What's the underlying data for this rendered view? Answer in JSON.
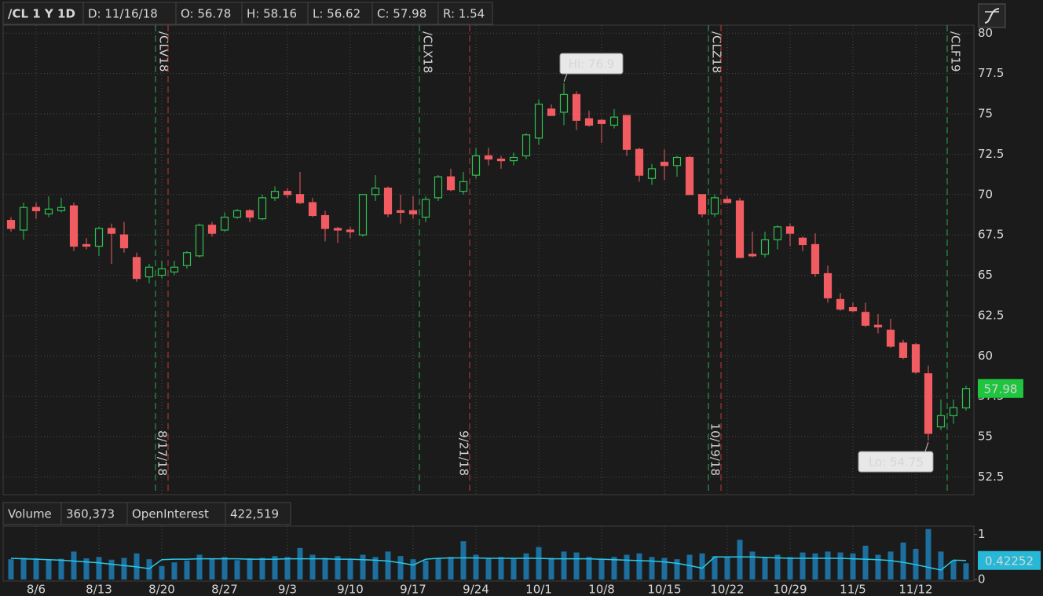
{
  "chart_data": [
    {
      "type": "candlestick",
      "header": [
        "/CL 1 Y 1D",
        "D: 11/16/18",
        "O: 56.78",
        "H: 58.16",
        "L: 56.62",
        "C: 57.98",
        "R: 1.54"
      ],
      "categories": [
        null,
        null,
        "8/6",
        null,
        null,
        null,
        null,
        "8/13",
        null,
        null,
        null,
        null,
        "8/20",
        null,
        null,
        null,
        null,
        "8/27",
        null,
        null,
        null,
        null,
        "9/3",
        null,
        null,
        null,
        null,
        "9/10",
        null,
        null,
        null,
        null,
        "9/17",
        null,
        null,
        null,
        null,
        "9/24",
        null,
        null,
        null,
        null,
        "10/1",
        null,
        null,
        null,
        null,
        "10/8",
        null,
        null,
        null,
        null,
        "10/15",
        null,
        null,
        null,
        null,
        "10/22",
        null,
        null,
        null,
        null,
        "10/29",
        null,
        null,
        null,
        null,
        "11/5",
        null,
        null,
        null,
        null,
        "11/12",
        null,
        null,
        null,
        null
      ],
      "open": [
        68.4,
        67.8,
        69.2,
        68.8,
        69.0,
        69.3,
        66.9,
        66.8,
        67.9,
        67.5,
        66.1,
        64.9,
        65.0,
        65.2,
        65.6,
        66.2,
        68.1,
        67.8,
        68.6,
        69.0,
        68.5,
        69.8,
        70.2,
        70.0,
        69.5,
        68.7,
        67.9,
        67.8,
        67.5,
        70.0,
        70.4,
        69.0,
        69.0,
        68.6,
        69.8,
        71.1,
        70.2,
        71.2,
        72.4,
        72.2,
        72.1,
        72.4,
        73.5,
        75.3,
        75.1,
        76.2,
        74.7,
        74.6,
        74.3,
        74.9,
        72.8,
        71.0,
        72.0,
        71.8,
        72.3,
        70.0,
        68.8,
        69.7,
        69.6,
        66.3,
        66.3,
        67.2,
        68.0,
        67.3,
        66.9,
        65.1,
        63.5,
        63.0,
        62.7,
        61.9,
        61.6,
        60.8,
        60.7,
        58.9,
        55.6,
        56.3,
        56.78
      ],
      "high": [
        68.6,
        69.5,
        69.5,
        69.9,
        69.8,
        69.5,
        67.3,
        68.0,
        68.2,
        68.3,
        66.4,
        65.7,
        65.9,
        65.9,
        66.5,
        68.2,
        68.3,
        68.9,
        69.1,
        69.1,
        70.0,
        70.5,
        70.4,
        71.4,
        69.8,
        69.0,
        68.0,
        68.0,
        70.0,
        71.2,
        70.5,
        70.0,
        69.9,
        69.9,
        71.2,
        71.6,
        71.4,
        72.9,
        72.9,
        72.4,
        72.6,
        73.8,
        75.9,
        75.6,
        76.9,
        76.4,
        75.2,
        74.7,
        75.3,
        74.9,
        72.9,
        71.9,
        72.8,
        72.4,
        72.4,
        70.0,
        70.0,
        69.9,
        69.8,
        67.7,
        67.7,
        68.1,
        68.2,
        67.4,
        67.6,
        65.6,
        63.9,
        63.3,
        63.3,
        62.6,
        62.3,
        61.0,
        60.8,
        59.4,
        57.3,
        57.3,
        58.16
      ],
      "low": [
        67.7,
        67.2,
        68.5,
        68.6,
        68.9,
        66.5,
        66.6,
        66.2,
        65.7,
        66.4,
        64.6,
        64.5,
        64.8,
        65.0,
        65.4,
        66.1,
        67.4,
        67.7,
        68.5,
        68.3,
        68.4,
        69.6,
        69.8,
        69.4,
        68.6,
        67.1,
        67.0,
        67.3,
        67.4,
        69.6,
        68.6,
        68.2,
        68.5,
        68.3,
        69.6,
        70.2,
        70.0,
        71.0,
        71.8,
        71.6,
        71.8,
        72.2,
        73.1,
        74.9,
        74.3,
        74.0,
        74.2,
        73.2,
        74.1,
        72.4,
        70.8,
        70.6,
        70.9,
        71.1,
        70.0,
        68.6,
        68.6,
        69.5,
        66.1,
        66.1,
        66.1,
        66.6,
        66.8,
        66.5,
        64.9,
        63.3,
        62.8,
        62.7,
        61.8,
        61.4,
        60.5,
        59.8,
        58.9,
        54.75,
        55.4,
        55.8,
        56.62
      ],
      "close": [
        67.9,
        69.2,
        69.0,
        69.1,
        69.2,
        66.8,
        66.8,
        67.9,
        67.6,
        66.7,
        64.8,
        65.5,
        65.4,
        65.5,
        66.4,
        68.1,
        67.6,
        68.6,
        69.0,
        68.6,
        69.8,
        70.2,
        70.0,
        69.5,
        68.7,
        67.9,
        67.8,
        67.7,
        70.0,
        70.4,
        68.8,
        68.9,
        68.8,
        69.7,
        71.1,
        70.3,
        70.8,
        72.4,
        72.2,
        72.1,
        72.3,
        73.7,
        75.6,
        74.9,
        76.2,
        74.6,
        74.3,
        74.4,
        74.8,
        72.8,
        71.2,
        71.6,
        71.8,
        72.3,
        70.0,
        68.8,
        69.8,
        69.5,
        66.1,
        66.2,
        67.2,
        68.0,
        67.6,
        66.9,
        65.1,
        63.6,
        62.9,
        62.8,
        61.9,
        61.8,
        60.6,
        59.9,
        59.0,
        55.2,
        56.3,
        56.8,
        57.98
      ],
      "up_color": "#2fc24f",
      "down_color": "#f05c61",
      "ylim": [
        51.4,
        80.5
      ],
      "yticks": [
        52.5,
        55,
        57.5,
        60,
        62.5,
        65,
        67.5,
        70,
        72.5,
        75,
        77.5,
        80
      ],
      "grid": true,
      "high_label": "Hi: 76.9",
      "low_label": "Lo: 54.75",
      "expirations": [
        {
          "symbol": "/CLV18",
          "date": "8/17/18"
        },
        {
          "symbol": "/CLX18",
          "date": "9/21/18"
        },
        {
          "symbol": "/CLZ18",
          "date": "10/19/18"
        },
        {
          "symbol": "/CLF19"
        }
      ]
    },
    {
      "type": "bar",
      "readouts": [
        "360,373",
        "422,519"
      ],
      "series": [
        {
          "name": "Volume",
          "color": "#1c6f9e",
          "values": [
            0.45,
            0.48,
            0.47,
            0.44,
            0.46,
            0.62,
            0.47,
            0.5,
            0.44,
            0.48,
            0.58,
            0.45,
            0.3,
            0.38,
            0.42,
            0.55,
            0.46,
            0.5,
            0.43,
            0.47,
            0.48,
            0.52,
            0.5,
            0.7,
            0.55,
            0.48,
            0.52,
            0.45,
            0.55,
            0.5,
            0.62,
            0.52,
            0.45,
            0.42,
            0.48,
            0.5,
            0.85,
            0.55,
            0.48,
            0.5,
            0.46,
            0.58,
            0.72,
            0.48,
            0.62,
            0.6,
            0.5,
            0.45,
            0.5,
            0.55,
            0.58,
            0.5,
            0.48,
            0.45,
            0.55,
            0.58,
            0.52,
            0.5,
            0.88,
            0.62,
            0.5,
            0.55,
            0.5,
            0.6,
            0.58,
            0.62,
            0.6,
            0.58,
            0.75,
            0.55,
            0.62,
            0.82,
            0.68,
            1.12,
            0.62,
            0.42,
            0.360373
          ]
        },
        {
          "name": "OpenInterest",
          "color": "#2cc8e4",
          "last_label": "0.42252",
          "values": [
            0.47,
            0.46,
            0.45,
            0.44,
            0.43,
            0.41,
            0.39,
            0.37,
            0.34,
            0.31,
            0.28,
            0.24,
            0.44,
            0.45,
            0.45,
            0.46,
            0.46,
            0.46,
            0.46,
            0.45,
            0.45,
            0.45,
            0.46,
            0.46,
            0.46,
            0.46,
            0.45,
            0.45,
            0.44,
            0.43,
            0.41,
            0.37,
            0.32,
            0.45,
            0.47,
            0.48,
            0.48,
            0.48,
            0.47,
            0.47,
            0.47,
            0.47,
            0.47,
            0.46,
            0.46,
            0.46,
            0.46,
            0.45,
            0.44,
            0.43,
            0.42,
            0.41,
            0.39,
            0.36,
            0.31,
            0.25,
            0.5,
            0.5,
            0.5,
            0.5,
            0.49,
            0.48,
            0.47,
            0.47,
            0.47,
            0.47,
            0.47,
            0.46,
            0.45,
            0.44,
            0.42,
            0.38,
            0.33,
            0.27,
            0.21,
            0.43,
            0.422519
          ]
        }
      ],
      "ylim": [
        0,
        1.15
      ],
      "yticks": [
        0,
        1
      ]
    }
  ]
}
